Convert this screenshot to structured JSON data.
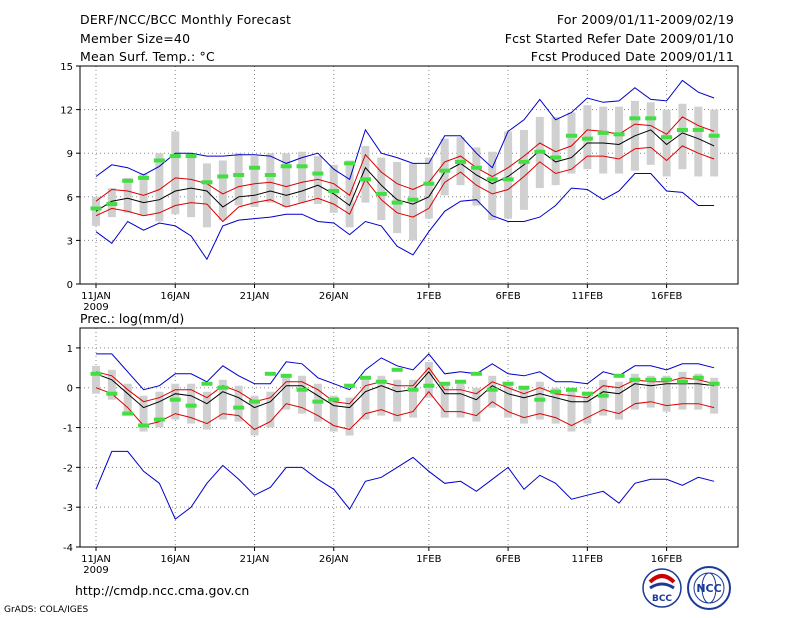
{
  "header": {
    "title": "DERF/NCC/BCC Monthly Forecast",
    "member_size": "Member Size=40",
    "variable": "Mean Surf. Temp.: °C",
    "for_range": "For 2009/01/11-2009/02/19",
    "fcst_started": "Fcst Started Refer Date 2009/01/10",
    "fcst_produced": "Fcst Produced Date 2009/01/11"
  },
  "footer": {
    "url": "http://cmdp.ncc.cma.gov.cn",
    "credit": "GrADS: COLA/IGES",
    "logo_bcc": "BCC",
    "logo_ncc": "NCC"
  },
  "colors": {
    "envelope": "#0000cc",
    "spread": "#dd0000",
    "mean": "#000000",
    "box": "#d0d0d0",
    "obs": "#44dd44"
  },
  "chart_data": [
    {
      "type": "line",
      "title": "Mean Surf. Temp.: °C",
      "x_labels": [
        "11JAN",
        "16JAN",
        "21JAN",
        "26JAN",
        "1FEB",
        "6FEB",
        "11FEB",
        "16FEB"
      ],
      "x_label_days": [
        1,
        6,
        11,
        16,
        22,
        27,
        32,
        37
      ],
      "year_label": "2009",
      "ylim": [
        0,
        15
      ],
      "yticks": [
        0,
        3,
        6,
        9,
        12,
        15
      ],
      "series": [
        {
          "name": "max",
          "values": [
            7.4,
            8.2,
            8.0,
            7.5,
            8.1,
            9.0,
            9.0,
            8.8,
            8.8,
            8.9,
            8.9,
            8.8,
            8.3,
            8.7,
            9.0,
            7.9,
            7.2,
            10.6,
            9.0,
            8.7,
            8.3,
            8.3,
            10.2,
            10.2,
            9.0,
            8.0,
            10.5,
            11.3,
            12.7,
            11.3,
            11.8,
            12.8,
            12.5,
            12.6,
            13.5,
            12.7,
            12.6,
            14.0,
            13.2,
            12.8
          ]
        },
        {
          "name": "upper",
          "values": [
            5.7,
            6.5,
            6.4,
            6.1,
            6.5,
            7.3,
            7.2,
            6.9,
            6.2,
            6.7,
            6.9,
            7.0,
            6.7,
            7.0,
            7.2,
            6.9,
            6.1,
            8.9,
            7.7,
            6.9,
            6.5,
            7.0,
            8.4,
            8.8,
            8.0,
            7.4,
            8.0,
            8.8,
            9.7,
            9.1,
            9.5,
            10.6,
            10.5,
            10.3,
            11.0,
            10.9,
            10.3,
            11.5,
            10.9,
            10.5
          ]
        },
        {
          "name": "mean",
          "values": [
            5.0,
            5.7,
            5.9,
            5.6,
            5.8,
            6.4,
            6.6,
            6.4,
            5.3,
            6.0,
            6.1,
            6.4,
            6.1,
            6.4,
            6.8,
            6.2,
            5.4,
            8.0,
            6.8,
            5.8,
            5.5,
            6.0,
            7.7,
            8.3,
            7.5,
            6.9,
            7.4,
            8.2,
            9.2,
            8.4,
            8.7,
            9.7,
            9.7,
            9.6,
            10.2,
            10.6,
            9.6,
            10.4,
            10.0,
            9.5
          ]
        },
        {
          "name": "lower",
          "values": [
            4.7,
            5.2,
            5.0,
            4.7,
            4.9,
            5.4,
            5.6,
            5.5,
            4.3,
            5.3,
            5.6,
            5.8,
            5.3,
            5.6,
            5.9,
            5.5,
            4.8,
            7.2,
            5.8,
            4.9,
            4.6,
            5.2,
            7.0,
            7.7,
            6.8,
            6.2,
            6.5,
            7.4,
            8.4,
            7.6,
            7.9,
            8.8,
            8.8,
            8.6,
            9.3,
            9.4,
            8.5,
            9.5,
            9.0,
            8.6
          ]
        },
        {
          "name": "min",
          "values": [
            3.6,
            2.8,
            4.3,
            3.7,
            4.2,
            4.0,
            3.3,
            1.7,
            4.0,
            4.4,
            4.5,
            4.6,
            4.8,
            4.8,
            4.3,
            4.2,
            3.4,
            4.3,
            4.0,
            2.6,
            2.0,
            3.6,
            5.0,
            5.7,
            5.8,
            4.7,
            4.3,
            4.3,
            4.6,
            5.4,
            6.6,
            6.5,
            5.8,
            6.4,
            7.6,
            7.6,
            6.4,
            6.3,
            5.4,
            5.4
          ]
        }
      ],
      "obs": [
        5.2,
        5.5,
        7.1,
        7.3,
        8.5,
        8.8,
        8.8,
        7.0,
        7.4,
        7.5,
        8.0,
        7.5,
        8.1,
        8.1,
        7.6,
        6.4,
        8.3,
        7.2,
        6.2,
        5.6,
        5.8,
        6.9,
        7.8,
        8.4,
        8.0,
        7.2,
        7.2,
        8.4,
        9.1,
        8.7,
        10.2,
        10.0,
        10.4,
        10.3,
        11.4,
        11.4,
        10.1,
        10.6,
        10.6,
        10.2
      ],
      "box_top": [
        6.0,
        6.6,
        7.3,
        7.6,
        9.0,
        10.5,
        9.0,
        8.3,
        8.5,
        9.0,
        8.8,
        9.0,
        9.0,
        9.1,
        8.8,
        8.2,
        8.5,
        9.5,
        8.7,
        8.4,
        8.3,
        8.7,
        10.0,
        10.1,
        9.4,
        9.1,
        10.5,
        10.6,
        11.5,
        11.5,
        11.8,
        12.3,
        12.2,
        12.2,
        12.6,
        12.5,
        12.0,
        12.4,
        12.2,
        12.0
      ],
      "box_bottom": [
        4.0,
        4.6,
        4.9,
        4.7,
        4.3,
        4.8,
        4.6,
        3.9,
        4.4,
        5.4,
        5.3,
        5.6,
        5.3,
        5.6,
        5.5,
        4.9,
        3.9,
        5.6,
        4.4,
        3.5,
        3.0,
        4.5,
        6.1,
        6.8,
        5.4,
        4.4,
        4.5,
        5.1,
        6.6,
        6.8,
        7.6,
        7.9,
        7.6,
        7.6,
        7.8,
        8.2,
        7.4,
        7.9,
        7.4,
        7.4
      ]
    },
    {
      "type": "line",
      "title": "Prec.: log(mm/d)",
      "x_labels": [
        "11JAN",
        "16JAN",
        "21JAN",
        "26JAN",
        "1FEB",
        "6FEB",
        "11FEB",
        "16FEB"
      ],
      "x_label_days": [
        1,
        6,
        11,
        16,
        22,
        27,
        32,
        37
      ],
      "year_label": "2009",
      "ylim": [
        -4,
        1.5
      ],
      "yticks": [
        -4,
        -3,
        -2,
        -1,
        0,
        1
      ],
      "series": [
        {
          "name": "max",
          "values": [
            0.85,
            0.85,
            0.4,
            -0.05,
            0.05,
            0.35,
            0.35,
            0.15,
            0.55,
            0.3,
            0.1,
            0.1,
            0.65,
            0.6,
            0.25,
            0.1,
            -0.05,
            0.45,
            0.75,
            0.55,
            0.45,
            0.85,
            0.35,
            0.4,
            0.35,
            0.6,
            0.35,
            0.3,
            0.4,
            0.15,
            0.15,
            0.1,
            0.4,
            0.3,
            0.55,
            0.55,
            0.45,
            0.6,
            0.6,
            0.5
          ]
        },
        {
          "name": "upper",
          "values": [
            0.4,
            0.3,
            -0.05,
            -0.35,
            -0.25,
            -0.05,
            -0.05,
            -0.25,
            0.05,
            -0.1,
            -0.35,
            -0.25,
            0.15,
            0.15,
            -0.05,
            -0.35,
            -0.4,
            0.05,
            0.15,
            0.05,
            0.05,
            0.5,
            -0.05,
            -0.05,
            -0.15,
            0.15,
            0.0,
            -0.15,
            0.0,
            -0.15,
            -0.2,
            -0.25,
            0.05,
            0.0,
            0.2,
            0.15,
            0.15,
            0.25,
            0.2,
            0.1
          ]
        },
        {
          "name": "mean",
          "values": [
            0.35,
            0.2,
            -0.15,
            -0.5,
            -0.35,
            -0.15,
            -0.2,
            -0.4,
            -0.1,
            -0.25,
            -0.5,
            -0.35,
            0.05,
            0.05,
            -0.2,
            -0.45,
            -0.5,
            -0.1,
            0.05,
            -0.1,
            -0.05,
            0.4,
            -0.15,
            -0.15,
            -0.3,
            0.05,
            -0.15,
            -0.25,
            -0.15,
            -0.25,
            -0.35,
            -0.35,
            -0.1,
            -0.15,
            0.1,
            0.05,
            0.1,
            0.1,
            0.1,
            0.05
          ]
        },
        {
          "name": "lower",
          "values": [
            0.0,
            -0.15,
            -0.5,
            -0.95,
            -0.85,
            -0.65,
            -0.75,
            -0.9,
            -0.65,
            -0.7,
            -1.05,
            -0.85,
            -0.4,
            -0.5,
            -0.7,
            -0.95,
            -1.05,
            -0.65,
            -0.55,
            -0.7,
            -0.6,
            -0.1,
            -0.6,
            -0.6,
            -0.7,
            -0.35,
            -0.6,
            -0.75,
            -0.65,
            -0.75,
            -0.95,
            -0.75,
            -0.55,
            -0.65,
            -0.4,
            -0.35,
            -0.45,
            -0.4,
            -0.4,
            -0.5
          ]
        },
        {
          "name": "min",
          "values": [
            -2.55,
            -1.6,
            -1.6,
            -2.1,
            -2.4,
            -3.3,
            -3.0,
            -2.4,
            -1.95,
            -2.3,
            -2.7,
            -2.5,
            -2.0,
            -2.0,
            -2.3,
            -2.55,
            -3.05,
            -2.35,
            -2.25,
            -2.0,
            -1.75,
            -2.1,
            -2.4,
            -2.35,
            -2.6,
            -2.3,
            -2.0,
            -2.55,
            -2.2,
            -2.4,
            -2.8,
            -2.7,
            -2.6,
            -2.9,
            -2.4,
            -2.3,
            -2.3,
            -2.45,
            -2.25,
            -2.35
          ]
        }
      ],
      "obs": [
        0.35,
        -0.15,
        -0.65,
        -0.95,
        -0.8,
        -0.3,
        -0.45,
        0.1,
        0.0,
        -0.5,
        -0.35,
        0.35,
        0.3,
        -0.05,
        -0.35,
        -0.3,
        0.05,
        0.25,
        0.15,
        0.45,
        -0.05,
        0.05,
        0.1,
        0.15,
        0.35,
        -0.05,
        0.1,
        0.0,
        -0.3,
        -0.1,
        -0.05,
        -0.15,
        -0.2,
        0.3,
        0.2,
        0.2,
        0.2,
        0.15,
        0.25,
        0.1
      ]
    }
  ]
}
